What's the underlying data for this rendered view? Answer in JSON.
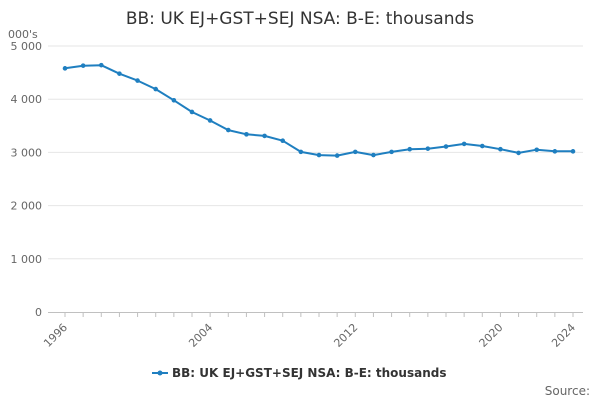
{
  "chart_data": {
    "type": "line",
    "title": "BB: UK EJ+GST+SEJ NSA: B-E: thousands",
    "ylabel": "000's",
    "ylim": [
      0,
      5000
    ],
    "yticks": [
      0,
      1000,
      2000,
      3000,
      4000,
      5000
    ],
    "ytick_labels": [
      "0",
      "1 000",
      "2 000",
      "3 000",
      "4 000",
      "5 000"
    ],
    "xlim": [
      1996,
      2024
    ],
    "xticks": [
      1996,
      2004,
      2012,
      2020,
      2024
    ],
    "xtick_labels": [
      "1996",
      "2004",
      "2012",
      "2020",
      "2024"
    ],
    "grid": true,
    "legend_position": "bottom",
    "series": [
      {
        "name": "BB: UK EJ+GST+SEJ NSA: B-E: thousands",
        "color": "#1f7fc0",
        "x": [
          1996,
          1997,
          1998,
          1999,
          2000,
          2001,
          2002,
          2003,
          2004,
          2005,
          2006,
          2007,
          2008,
          2009,
          2010,
          2011,
          2012,
          2013,
          2014,
          2015,
          2016,
          2017,
          2018,
          2019,
          2020,
          2021,
          2022,
          2023,
          2024
        ],
        "y": [
          4580,
          4630,
          4640,
          4480,
          4350,
          4190,
          3980,
          3760,
          3600,
          3420,
          3340,
          3310,
          3220,
          3010,
          2950,
          2940,
          3010,
          2950,
          3010,
          3060,
          3070,
          3110,
          3160,
          3120,
          3060,
          2990,
          3050,
          3020,
          3020
        ]
      }
    ]
  },
  "source_label": "Source:"
}
